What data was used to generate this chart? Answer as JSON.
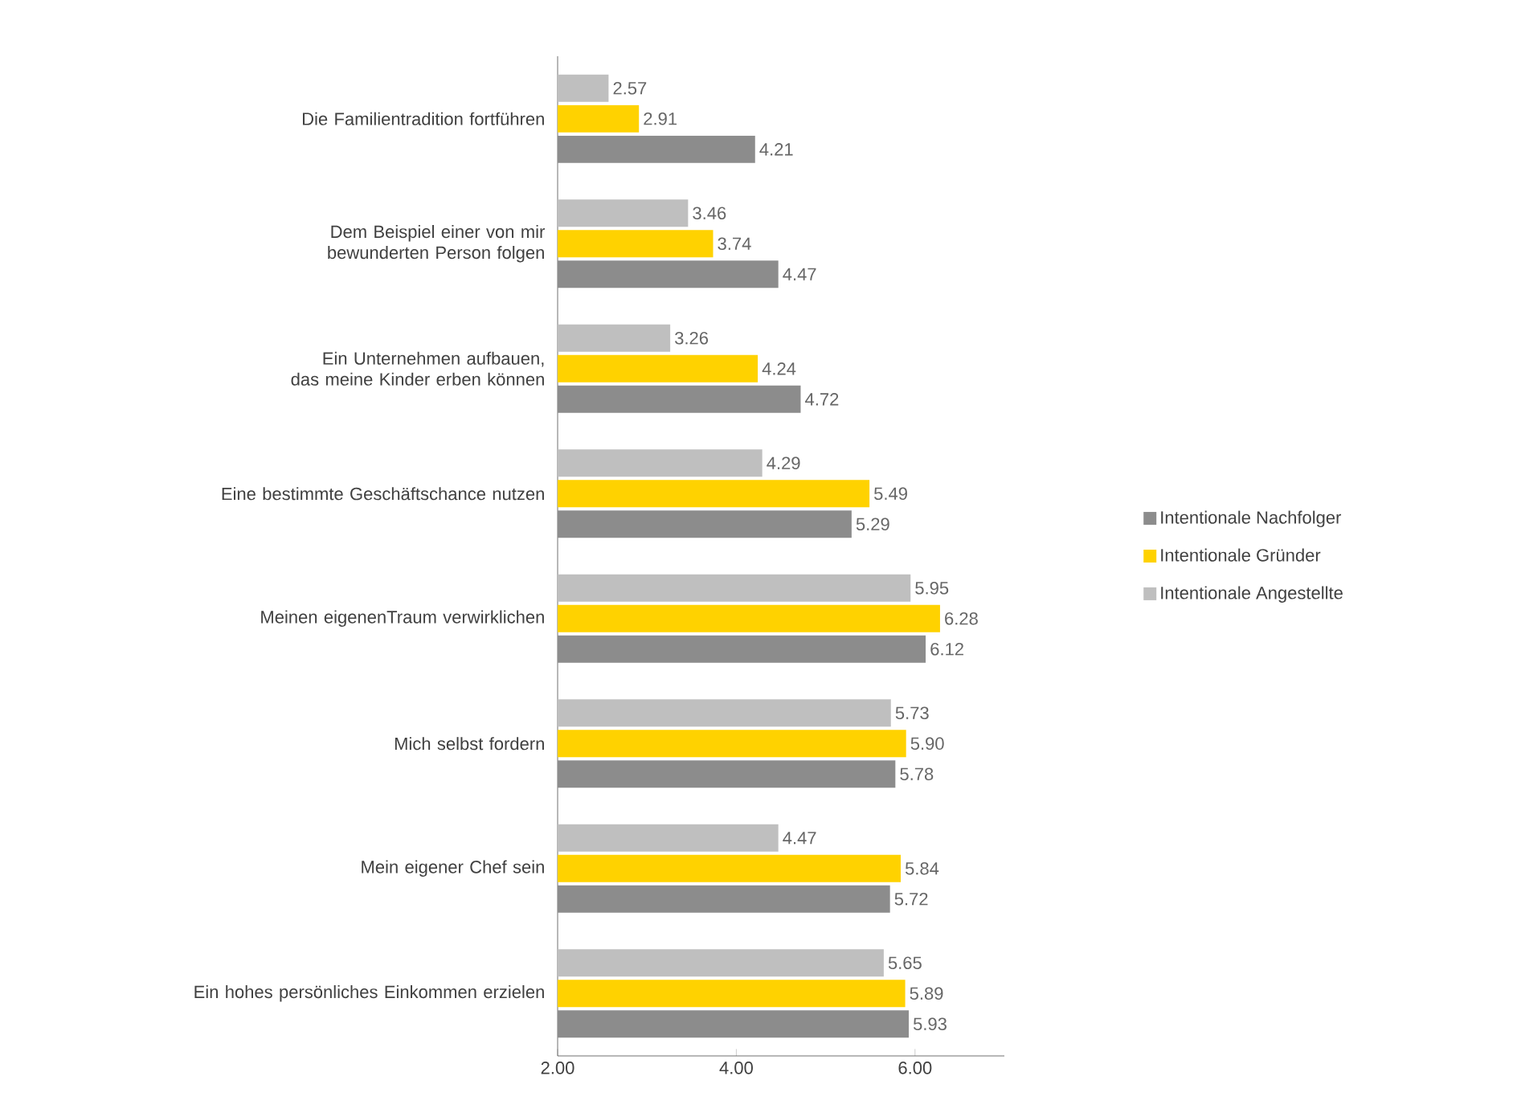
{
  "chart_data": {
    "type": "bar",
    "orientation": "horizontal",
    "categories": [
      "Die Familientradition fortführen",
      "Dem Beispiel einer von mir bewunderten Person folgen",
      "Ein Unternehmen aufbauen, das meine Kinder erben können",
      "Eine bestimmte Geschäftschance nutzen",
      "Meinen eigenenTraum verwirklichen",
      "Mich selbst fordern",
      "Mein eigener Chef sein",
      "Ein hohes persönliches Einkommen erzielen"
    ],
    "series": [
      {
        "name": "Intentionale Nachfolger",
        "color": "#8c8c8c",
        "values": [
          4.21,
          4.47,
          4.72,
          5.29,
          6.12,
          5.78,
          5.72,
          5.93
        ],
        "value_labels": [
          "4.21",
          "4.47",
          "4.72",
          "5.29",
          "6.12",
          "5.78",
          "5.72",
          "5.93"
        ]
      },
      {
        "name": "Intentionale Gründer",
        "color": "#ffd200",
        "values": [
          2.91,
          3.74,
          4.24,
          5.49,
          6.28,
          5.9,
          5.84,
          5.89
        ],
        "value_labels": [
          "2.91",
          "3.74",
          "4.24",
          "5.49",
          "6.28",
          "5.90",
          "5.84",
          "5.89"
        ]
      },
      {
        "name": "Intentionale Angestellte",
        "color": "#bfbfbf",
        "values": [
          2.57,
          3.46,
          3.26,
          4.29,
          5.95,
          5.73,
          4.47,
          5.65
        ],
        "value_labels": [
          "2.57",
          "3.46",
          "3.26",
          "4.29",
          "5.95",
          "5.73",
          "4.47",
          "5.65"
        ]
      }
    ],
    "xlim": [
      2,
      7
    ],
    "xticks": [
      {
        "value": 2,
        "label": "2.00"
      },
      {
        "value": 4,
        "label": "4.00"
      },
      {
        "value": 6,
        "label": "6.00"
      }
    ],
    "legend": "right",
    "grid": false
  }
}
